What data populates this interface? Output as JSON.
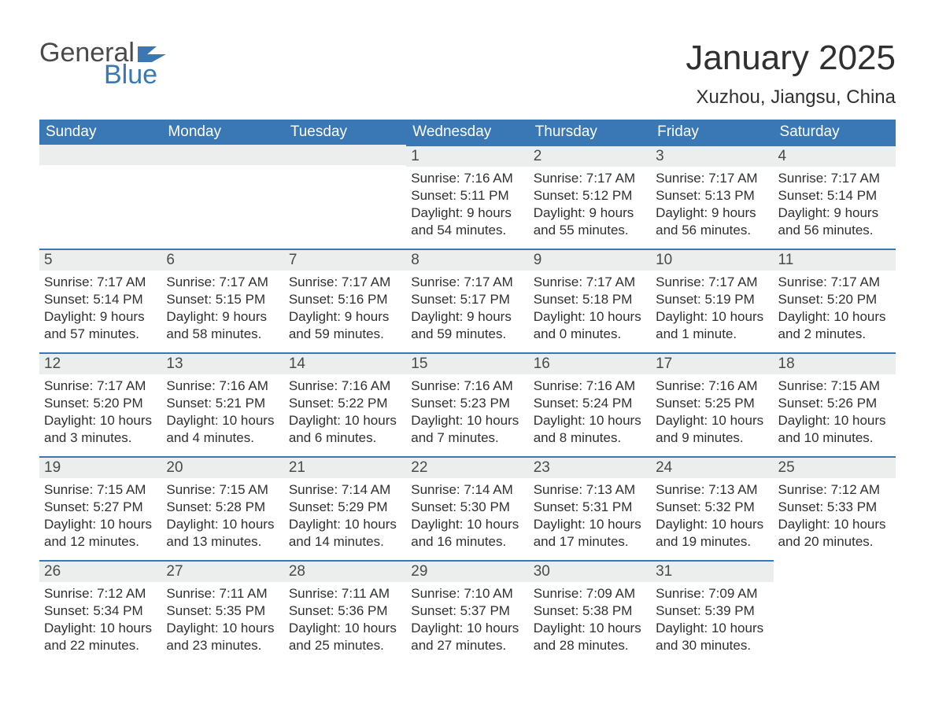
{
  "brand": {
    "general": "General",
    "blue": "Blue"
  },
  "colors": {
    "header_bg": "#3a78b5",
    "daybar_bg": "#eceded",
    "daybar_border": "#3a78b5",
    "text": "#303030",
    "logo_gray": "#4a4a4a",
    "logo_blue": "#3a78b5",
    "page_bg": "#ffffff"
  },
  "title": "January 2025",
  "location": "Xuzhou, Jiangsu, China",
  "weekdays": [
    "Sunday",
    "Monday",
    "Tuesday",
    "Wednesday",
    "Thursday",
    "Friday",
    "Saturday"
  ],
  "weeks": [
    [
      null,
      null,
      null,
      {
        "n": "1",
        "sr": "Sunrise: 7:16 AM",
        "ss": "Sunset: 5:11 PM",
        "d1": "Daylight: 9 hours",
        "d2": "and 54 minutes."
      },
      {
        "n": "2",
        "sr": "Sunrise: 7:17 AM",
        "ss": "Sunset: 5:12 PM",
        "d1": "Daylight: 9 hours",
        "d2": "and 55 minutes."
      },
      {
        "n": "3",
        "sr": "Sunrise: 7:17 AM",
        "ss": "Sunset: 5:13 PM",
        "d1": "Daylight: 9 hours",
        "d2": "and 56 minutes."
      },
      {
        "n": "4",
        "sr": "Sunrise: 7:17 AM",
        "ss": "Sunset: 5:14 PM",
        "d1": "Daylight: 9 hours",
        "d2": "and 56 minutes."
      }
    ],
    [
      {
        "n": "5",
        "sr": "Sunrise: 7:17 AM",
        "ss": "Sunset: 5:14 PM",
        "d1": "Daylight: 9 hours",
        "d2": "and 57 minutes."
      },
      {
        "n": "6",
        "sr": "Sunrise: 7:17 AM",
        "ss": "Sunset: 5:15 PM",
        "d1": "Daylight: 9 hours",
        "d2": "and 58 minutes."
      },
      {
        "n": "7",
        "sr": "Sunrise: 7:17 AM",
        "ss": "Sunset: 5:16 PM",
        "d1": "Daylight: 9 hours",
        "d2": "and 59 minutes."
      },
      {
        "n": "8",
        "sr": "Sunrise: 7:17 AM",
        "ss": "Sunset: 5:17 PM",
        "d1": "Daylight: 9 hours",
        "d2": "and 59 minutes."
      },
      {
        "n": "9",
        "sr": "Sunrise: 7:17 AM",
        "ss": "Sunset: 5:18 PM",
        "d1": "Daylight: 10 hours",
        "d2": "and 0 minutes."
      },
      {
        "n": "10",
        "sr": "Sunrise: 7:17 AM",
        "ss": "Sunset: 5:19 PM",
        "d1": "Daylight: 10 hours",
        "d2": "and 1 minute."
      },
      {
        "n": "11",
        "sr": "Sunrise: 7:17 AM",
        "ss": "Sunset: 5:20 PM",
        "d1": "Daylight: 10 hours",
        "d2": "and 2 minutes."
      }
    ],
    [
      {
        "n": "12",
        "sr": "Sunrise: 7:17 AM",
        "ss": "Sunset: 5:20 PM",
        "d1": "Daylight: 10 hours",
        "d2": "and 3 minutes."
      },
      {
        "n": "13",
        "sr": "Sunrise: 7:16 AM",
        "ss": "Sunset: 5:21 PM",
        "d1": "Daylight: 10 hours",
        "d2": "and 4 minutes."
      },
      {
        "n": "14",
        "sr": "Sunrise: 7:16 AM",
        "ss": "Sunset: 5:22 PM",
        "d1": "Daylight: 10 hours",
        "d2": "and 6 minutes."
      },
      {
        "n": "15",
        "sr": "Sunrise: 7:16 AM",
        "ss": "Sunset: 5:23 PM",
        "d1": "Daylight: 10 hours",
        "d2": "and 7 minutes."
      },
      {
        "n": "16",
        "sr": "Sunrise: 7:16 AM",
        "ss": "Sunset: 5:24 PM",
        "d1": "Daylight: 10 hours",
        "d2": "and 8 minutes."
      },
      {
        "n": "17",
        "sr": "Sunrise: 7:16 AM",
        "ss": "Sunset: 5:25 PM",
        "d1": "Daylight: 10 hours",
        "d2": "and 9 minutes."
      },
      {
        "n": "18",
        "sr": "Sunrise: 7:15 AM",
        "ss": "Sunset: 5:26 PM",
        "d1": "Daylight: 10 hours",
        "d2": "and 10 minutes."
      }
    ],
    [
      {
        "n": "19",
        "sr": "Sunrise: 7:15 AM",
        "ss": "Sunset: 5:27 PM",
        "d1": "Daylight: 10 hours",
        "d2": "and 12 minutes."
      },
      {
        "n": "20",
        "sr": "Sunrise: 7:15 AM",
        "ss": "Sunset: 5:28 PM",
        "d1": "Daylight: 10 hours",
        "d2": "and 13 minutes."
      },
      {
        "n": "21",
        "sr": "Sunrise: 7:14 AM",
        "ss": "Sunset: 5:29 PM",
        "d1": "Daylight: 10 hours",
        "d2": "and 14 minutes."
      },
      {
        "n": "22",
        "sr": "Sunrise: 7:14 AM",
        "ss": "Sunset: 5:30 PM",
        "d1": "Daylight: 10 hours",
        "d2": "and 16 minutes."
      },
      {
        "n": "23",
        "sr": "Sunrise: 7:13 AM",
        "ss": "Sunset: 5:31 PM",
        "d1": "Daylight: 10 hours",
        "d2": "and 17 minutes."
      },
      {
        "n": "24",
        "sr": "Sunrise: 7:13 AM",
        "ss": "Sunset: 5:32 PM",
        "d1": "Daylight: 10 hours",
        "d2": "and 19 minutes."
      },
      {
        "n": "25",
        "sr": "Sunrise: 7:12 AM",
        "ss": "Sunset: 5:33 PM",
        "d1": "Daylight: 10 hours",
        "d2": "and 20 minutes."
      }
    ],
    [
      {
        "n": "26",
        "sr": "Sunrise: 7:12 AM",
        "ss": "Sunset: 5:34 PM",
        "d1": "Daylight: 10 hours",
        "d2": "and 22 minutes."
      },
      {
        "n": "27",
        "sr": "Sunrise: 7:11 AM",
        "ss": "Sunset: 5:35 PM",
        "d1": "Daylight: 10 hours",
        "d2": "and 23 minutes."
      },
      {
        "n": "28",
        "sr": "Sunrise: 7:11 AM",
        "ss": "Sunset: 5:36 PM",
        "d1": "Daylight: 10 hours",
        "d2": "and 25 minutes."
      },
      {
        "n": "29",
        "sr": "Sunrise: 7:10 AM",
        "ss": "Sunset: 5:37 PM",
        "d1": "Daylight: 10 hours",
        "d2": "and 27 minutes."
      },
      {
        "n": "30",
        "sr": "Sunrise: 7:09 AM",
        "ss": "Sunset: 5:38 PM",
        "d1": "Daylight: 10 hours",
        "d2": "and 28 minutes."
      },
      {
        "n": "31",
        "sr": "Sunrise: 7:09 AM",
        "ss": "Sunset: 5:39 PM",
        "d1": "Daylight: 10 hours",
        "d2": "and 30 minutes."
      },
      null
    ]
  ]
}
